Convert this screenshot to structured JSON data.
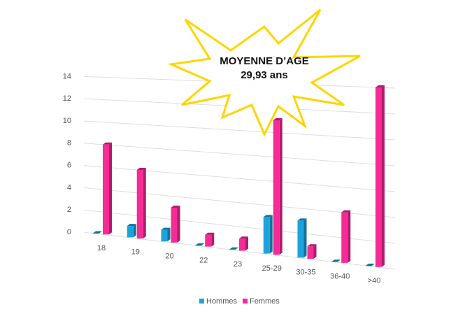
{
  "chart_data": {
    "type": "bar",
    "categories": [
      "18",
      "19",
      "20",
      "22",
      "23",
      "25-29",
      "30-35",
      "36-40",
      ">40"
    ],
    "series": [
      {
        "name": "Hommes",
        "color": "#1ca3dc",
        "values": [
          0,
          1,
          1,
          0,
          0,
          3,
          3,
          0,
          0
        ]
      },
      {
        "name": "Femmes",
        "color": "#f72a96",
        "values": [
          8,
          6,
          3,
          1,
          1,
          11,
          1,
          4,
          14
        ]
      }
    ],
    "ylim": [
      0,
      14
    ],
    "yticks": [
      0,
      2,
      4,
      6,
      8,
      10,
      12,
      14
    ],
    "grid": true,
    "legend": "bottom",
    "annotations": [
      "MOYENNE D’AGE",
      "29,93 ans"
    ]
  }
}
